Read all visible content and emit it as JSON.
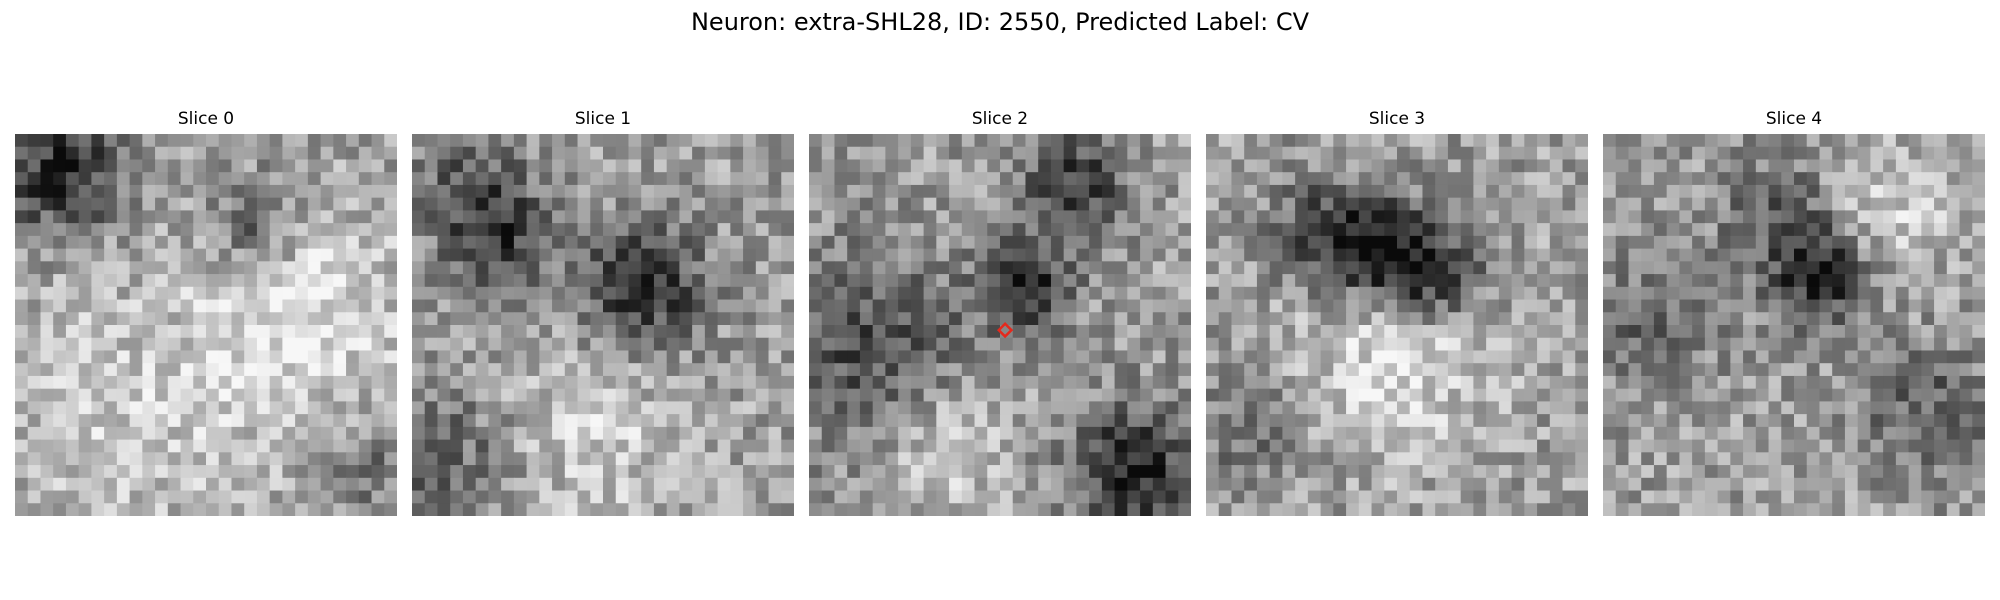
{
  "figure": {
    "title": "Neuron: extra-SHL28, ID: 2550, Predicted Label: CV"
  },
  "panels": [
    {
      "title": "Slice 0",
      "seed": 11,
      "features": [
        [
          0.12,
          0.1,
          0.12,
          0.85
        ],
        [
          0.63,
          0.24,
          0.09,
          0.55
        ],
        [
          0.35,
          0.72,
          0.3,
          -0.3
        ],
        [
          0.93,
          0.88,
          0.08,
          0.35
        ],
        [
          0.78,
          0.45,
          0.18,
          -0.45
        ]
      ]
    },
    {
      "title": "Slice 1",
      "seed": 23,
      "features": [
        [
          0.22,
          0.27,
          0.1,
          0.7
        ],
        [
          0.6,
          0.41,
          0.12,
          0.85
        ],
        [
          0.1,
          0.85,
          0.15,
          0.45
        ],
        [
          0.45,
          0.78,
          0.2,
          -0.35
        ],
        [
          0.15,
          0.12,
          0.1,
          0.4
        ]
      ]
    },
    {
      "title": "Slice 2",
      "seed": 37,
      "features": [
        [
          0.57,
          0.4,
          0.08,
          0.95
        ],
        [
          0.7,
          0.12,
          0.1,
          0.7
        ],
        [
          0.85,
          0.88,
          0.12,
          0.9
        ],
        [
          0.15,
          0.55,
          0.18,
          0.6
        ],
        [
          0.35,
          0.82,
          0.12,
          -0.4
        ]
      ]
    },
    {
      "title": "Slice 3",
      "seed": 41,
      "features": [
        [
          0.45,
          0.3,
          0.1,
          0.9
        ],
        [
          0.6,
          0.37,
          0.09,
          0.85
        ],
        [
          0.3,
          0.26,
          0.1,
          0.55
        ],
        [
          0.5,
          0.58,
          0.18,
          -0.45
        ],
        [
          0.12,
          0.78,
          0.1,
          0.4
        ]
      ]
    },
    {
      "title": "Slice 4",
      "seed": 53,
      "features": [
        [
          0.57,
          0.37,
          0.09,
          0.95
        ],
        [
          0.45,
          0.2,
          0.1,
          0.5
        ],
        [
          0.12,
          0.5,
          0.12,
          0.4
        ],
        [
          0.85,
          0.72,
          0.12,
          0.45
        ],
        [
          0.75,
          0.2,
          0.12,
          -0.35
        ]
      ]
    }
  ],
  "image_grid": 30,
  "marker": {
    "panel": 2,
    "col": 14.9,
    "row": 14.9,
    "color": "#e5281c"
  }
}
